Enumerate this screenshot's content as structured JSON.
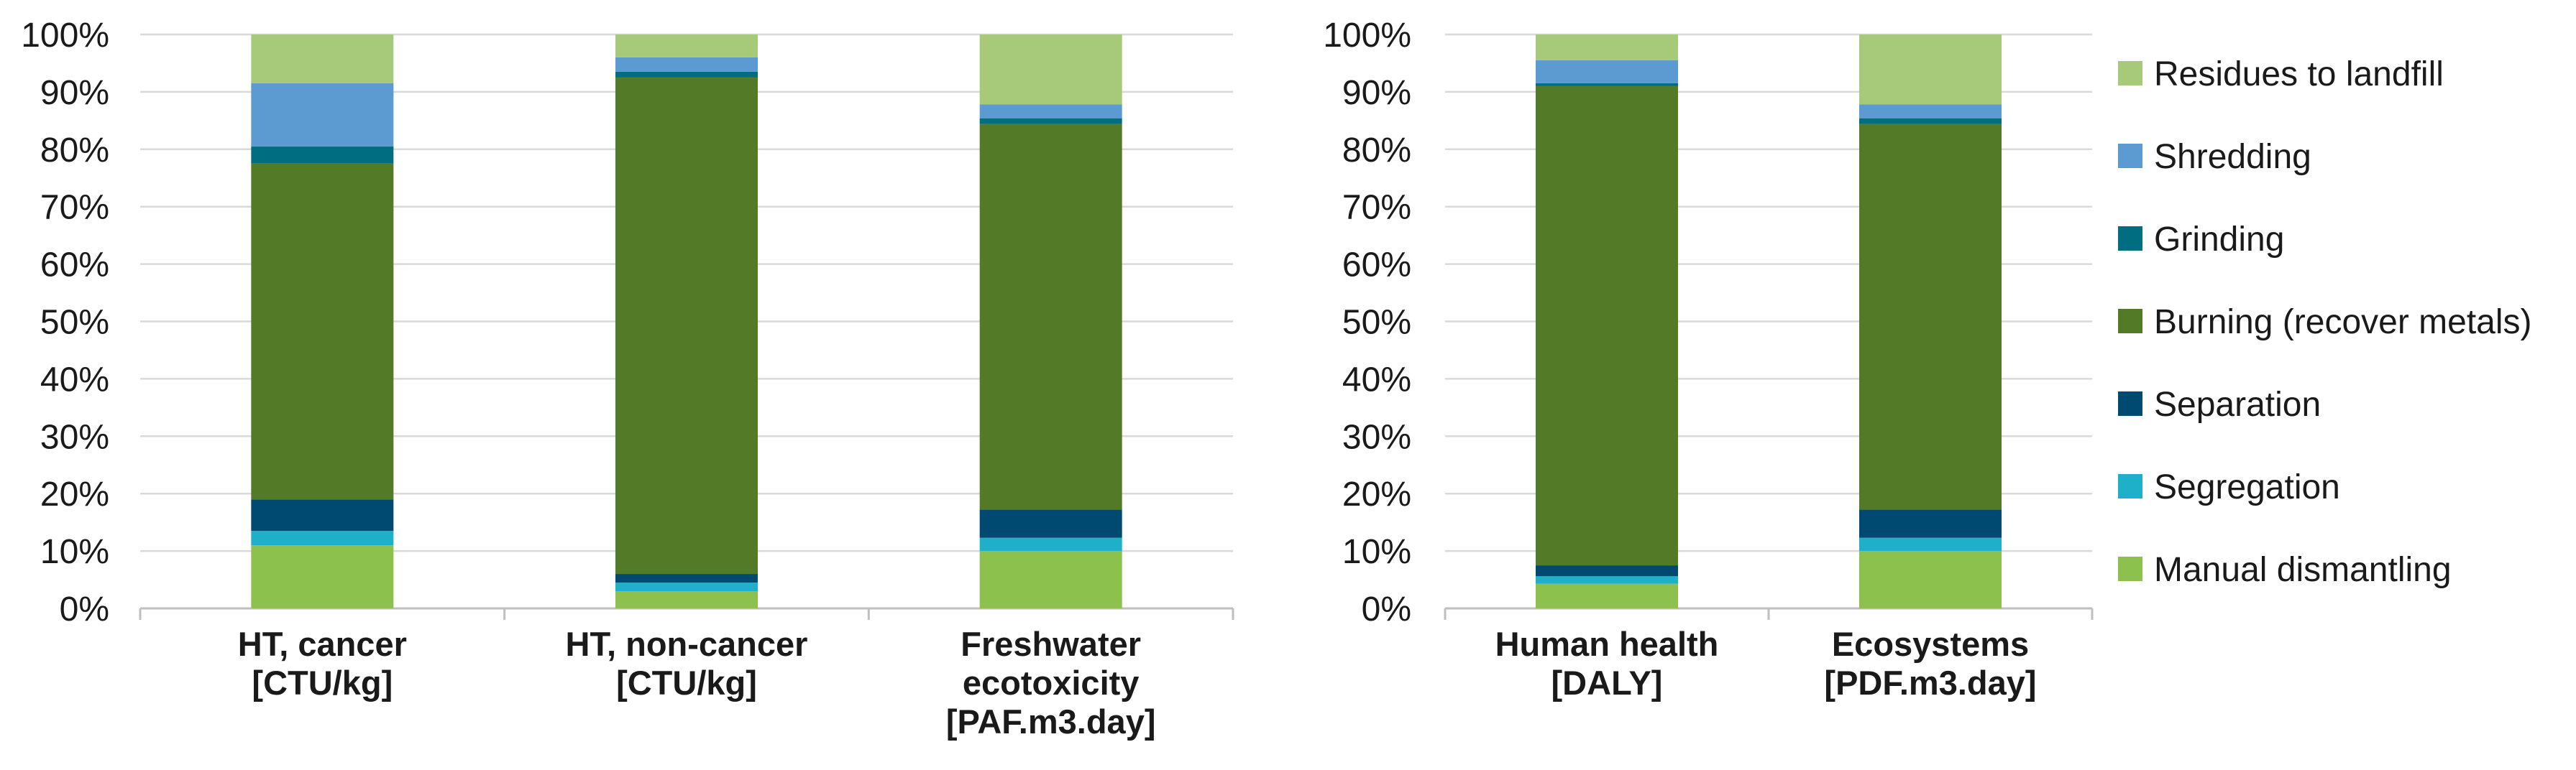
{
  "chart_data": [
    {
      "type": "bar",
      "stacked": true,
      "categories": [
        [
          "HT, cancer",
          "[CTU/kg]"
        ],
        [
          "HT, non-cancer",
          "[CTU/kg]"
        ],
        [
          "Freshwater",
          "ecotoxicity",
          "[PAF.m3.day]"
        ]
      ],
      "y_ticks": [
        "0%",
        "10%",
        "20%",
        "30%",
        "40%",
        "50%",
        "60%",
        "70%",
        "80%",
        "90%",
        "100%"
      ],
      "ylim": [
        0,
        100
      ],
      "grid": true,
      "series": [
        {
          "name": "Manual dismantling",
          "values": [
            11,
            3,
            10
          ]
        },
        {
          "name": "Segregation",
          "values": [
            2.5,
            1.5,
            2.3
          ]
        },
        {
          "name": "Separation",
          "values": [
            5.5,
            1.5,
            4.9
          ]
        },
        {
          "name": "Burning (recover metals)",
          "values": [
            58.5,
            86.5,
            67.2
          ]
        },
        {
          "name": "Grinding",
          "values": [
            3,
            1,
            1
          ]
        },
        {
          "name": "Shredding",
          "values": [
            11,
            2.5,
            2.4
          ]
        },
        {
          "name": "Residues to landfill",
          "values": [
            8.5,
            4,
            12.2
          ]
        }
      ]
    },
    {
      "type": "bar",
      "stacked": true,
      "categories": [
        [
          "Human health",
          "[DALY]"
        ],
        [
          "Ecosystems",
          "[PDF.m3.day]"
        ]
      ],
      "y_ticks": [
        "0%",
        "10%",
        "20%",
        "30%",
        "40%",
        "50%",
        "60%",
        "70%",
        "80%",
        "90%",
        "100%"
      ],
      "ylim": [
        0,
        100
      ],
      "grid": true,
      "legend_position": "right",
      "series": [
        {
          "name": "Manual dismantling",
          "values": [
            4.3,
            10
          ]
        },
        {
          "name": "Segregation",
          "values": [
            1.3,
            2.3
          ]
        },
        {
          "name": "Separation",
          "values": [
            1.9,
            4.9
          ]
        },
        {
          "name": "Burning (recover metals)",
          "values": [
            83.5,
            67.2
          ]
        },
        {
          "name": "Grinding",
          "values": [
            0.5,
            1
          ]
        },
        {
          "name": "Shredding",
          "values": [
            4,
            2.4
          ]
        },
        {
          "name": "Residues to landfill",
          "values": [
            4.5,
            12.2
          ]
        }
      ]
    }
  ],
  "legend": [
    {
      "label": "Residues to landfill",
      "color": "#a6c97a"
    },
    {
      "label": "Shredding",
      "color": "#5b9bd1"
    },
    {
      "label": "Grinding",
      "color": "#006d80"
    },
    {
      "label": "Burning (recover metals)",
      "color": "#537a26"
    },
    {
      "label": "Separation",
      "color": "#004a72"
    },
    {
      "label": "Segregation",
      "color": "#1eb0c9"
    },
    {
      "label": "Manual dismantling",
      "color": "#8cc14e"
    }
  ],
  "colors": {
    "Manual dismantling": "#8cc14e",
    "Segregation": "#1eb0c9",
    "Separation": "#004a72",
    "Burning (recover metals)": "#537a26",
    "Grinding": "#006d80",
    "Shredding": "#5b9bd1",
    "Residues to landfill": "#a6c97a"
  }
}
